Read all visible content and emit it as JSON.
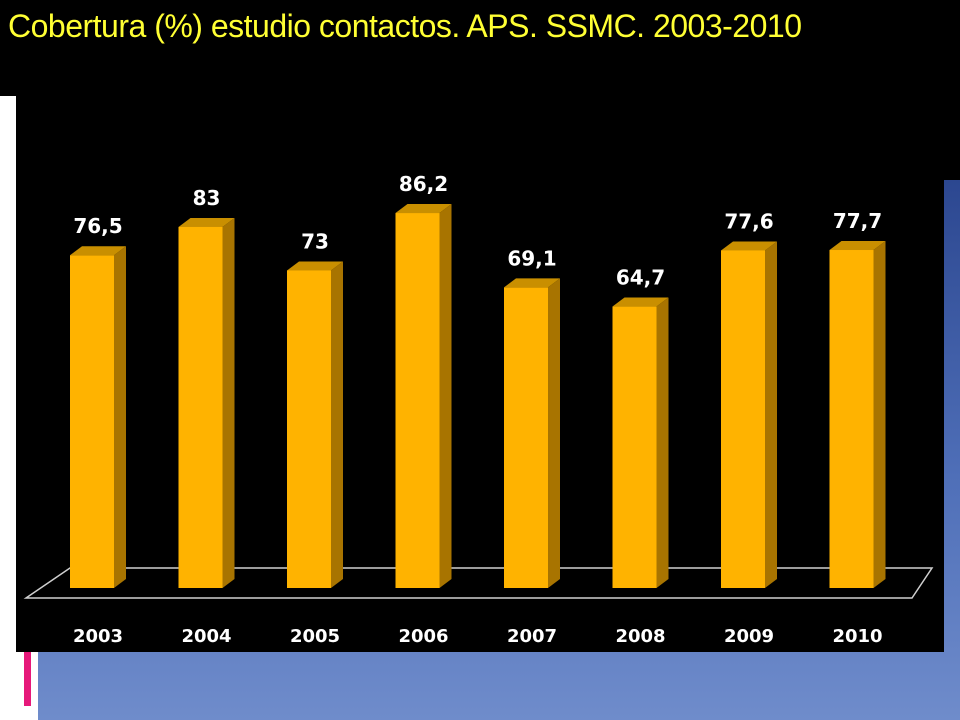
{
  "title": "Cobertura (%) estudio contactos.  APS.  SSMC.  2003-2010",
  "colors": {
    "bar_front": "#ffb300",
    "bar_side": "#a87400",
    "bar_top": "#c98f00",
    "label": "#ffffff",
    "title": "#ffff33"
  },
  "chart_data": {
    "type": "bar",
    "categories": [
      "2003",
      "2004",
      "2005",
      "2006",
      "2007",
      "2008",
      "2009",
      "2010"
    ],
    "series": [
      {
        "values": [
          76.5,
          83,
          73,
          86.2,
          69.1,
          64.7,
          77.6,
          77.7
        ],
        "labels": [
          "76,5",
          "83",
          "73",
          "86,2",
          "69,1",
          "64,7",
          "77,6",
          "77,7"
        ]
      }
    ],
    "title": "Cobertura (%) estudio contactos.  APS.  SSMC.  2003-2010",
    "xlabel": "",
    "ylabel": "",
    "ylim": [
      0,
      100
    ],
    "grid": false,
    "legend": "none"
  }
}
